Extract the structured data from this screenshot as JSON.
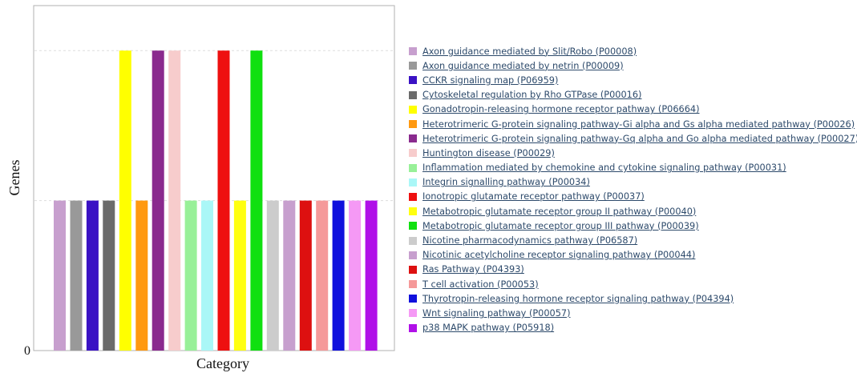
{
  "chart_data": {
    "type": "bar",
    "xlabel": "Category",
    "ylabel": "Genes",
    "y_tick_labels": [
      "0"
    ],
    "ylim": [
      0,
      2.3
    ],
    "grid": "horizontal dashed",
    "legend_position": "right",
    "categories": [
      "Axon guidance mediated by Slit/Robo (P00008)",
      "Axon guidance mediated by netrin (P00009)",
      "CCKR signaling map (P06959)",
      "Cytoskeletal regulation by Rho GTPase (P00016)",
      "Gonadotropin-releasing hormone receptor pathway (P06664)",
      "Heterotrimeric G-protein signaling pathway-Gi alpha and Gs alpha mediated pathway (P00026)",
      "Heterotrimeric G-protein signaling pathway-Gq alpha and Go alpha mediated pathway (P00027)",
      "Huntington disease (P00029)",
      "Inflammation mediated by chemokine and cytokine signaling pathway (P00031)",
      "Integrin signalling pathway (P00034)",
      "Ionotropic glutamate receptor pathway (P00037)",
      "Metabotropic glutamate receptor group II pathway (P00040)",
      "Metabotropic glutamate receptor group III pathway (P00039)",
      "Nicotine pharmacodynamics pathway (P06587)",
      "Nicotinic acetylcholine receptor signaling pathway (P00044)",
      "Ras Pathway (P04393)",
      "T cell activation (P00053)",
      "Thyrotropin-releasing hormone receptor signaling pathway (P04394)",
      "Wnt signaling pathway (P00057)",
      "p38 MAPK pathway (P05918)"
    ],
    "values": [
      1,
      1,
      1,
      1,
      2,
      1,
      2,
      2,
      1,
      1,
      2,
      1,
      2,
      1,
      1,
      1,
      1,
      1,
      1,
      1
    ],
    "colors": [
      "#c79fce",
      "#999999",
      "#3a12c4",
      "#6b6b6b",
      "#ffff00",
      "#ff9910",
      "#8a2a8e",
      "#f7cccc",
      "#98f098",
      "#aaf7f7",
      "#ee1010",
      "#ffff10",
      "#10e010",
      "#cccccc",
      "#c79fce",
      "#dd1010",
      "#f59999",
      "#1010dd",
      "#f599f5",
      "#b010e8"
    ]
  }
}
